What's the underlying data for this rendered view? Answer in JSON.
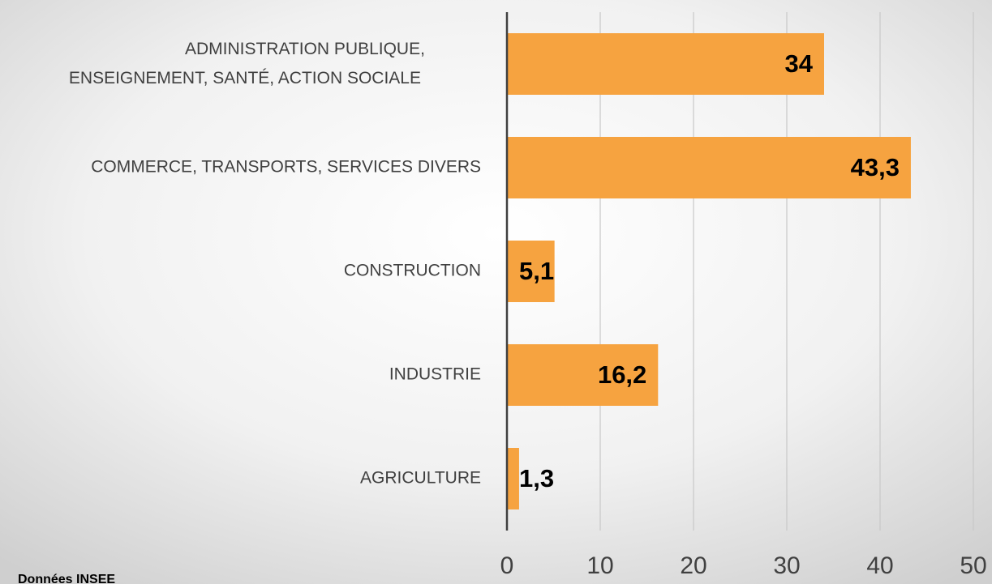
{
  "chart_data": {
    "type": "barh",
    "categories": [
      "ADMINISTRATION PUBLIQUE,\nENSEIGNEMENT, SANTÉ, ACTION SOCIALE",
      "COMMERCE, TRANSPORTS, SERVICES DIVERS",
      "CONSTRUCTION",
      "INDUSTRIE",
      "AGRICULTURE"
    ],
    "values": [
      34,
      43.3,
      5.1,
      16.2,
      1.3
    ],
    "value_labels": [
      "34",
      "43,3",
      "5,1",
      "16,2",
      "1,3"
    ],
    "color": "#f6a340",
    "xlim": [
      0,
      50
    ],
    "xticks": [
      0,
      10,
      20,
      30,
      40,
      50
    ],
    "grid": true,
    "source": "Données INSEE"
  }
}
